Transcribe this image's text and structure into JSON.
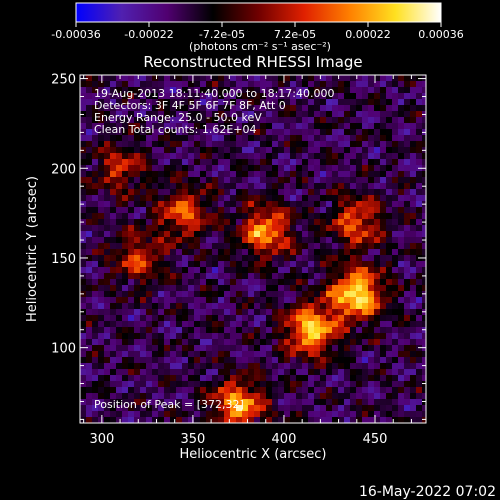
{
  "plot": {
    "title": "Reconstructed RHESSI Image",
    "xlabel": "Heliocentric X (arcsec)",
    "ylabel": "Heliocentric Y (arcsec)",
    "x_ticks": [
      "300",
      "350",
      "400",
      "450"
    ],
    "y_ticks": [
      "100",
      "150",
      "200",
      "250"
    ],
    "info_lines": [
      "19-Aug-2013 18:11:40.000 to 18:17:40.000",
      "Detectors: 3F 4F 5F 6F 7F 8F, Att 0",
      "Energy Range: 25.0 - 50.0 keV",
      "Clean     Total counts: 1.62E+04"
    ],
    "peak_text": "Position of Peak = [372,32]"
  },
  "colorbar": {
    "tick_labels": [
      "-0.00036",
      "-0.00022",
      "-7.2e-05",
      "7.2e-05",
      "0.00022",
      "0.00036"
    ],
    "units_label": "(photons cm⁻² s⁻¹ asec⁻²)",
    "colors": [
      "#0000ff",
      "#5020b0",
      "#500070",
      "#000000",
      "#700000",
      "#e02000",
      "#ff8000",
      "#ffe020",
      "#ffffff"
    ]
  },
  "footer": {
    "timestamp": "16-May-2022 07:02"
  },
  "chart_data": {
    "type": "heatmap",
    "title": "Reconstructed RHESSI Image",
    "xlabel": "Heliocentric X (arcsec)",
    "ylabel": "Heliocentric Y (arcsec)",
    "xlim": [
      288,
      478
    ],
    "ylim": [
      58,
      252
    ],
    "zlim": [
      -0.00036,
      0.00036
    ],
    "bright_regions": [
      {
        "x": 440,
        "y": 130,
        "level": 1.0
      },
      {
        "x": 415,
        "y": 110,
        "level": 0.9
      },
      {
        "x": 390,
        "y": 165,
        "level": 0.75
      },
      {
        "x": 440,
        "y": 170,
        "level": 0.6
      },
      {
        "x": 320,
        "y": 150,
        "level": 0.5
      },
      {
        "x": 345,
        "y": 175,
        "level": 0.6
      },
      {
        "x": 375,
        "y": 68,
        "level": 0.8
      },
      {
        "x": 310,
        "y": 200,
        "level": 0.45
      }
    ]
  }
}
